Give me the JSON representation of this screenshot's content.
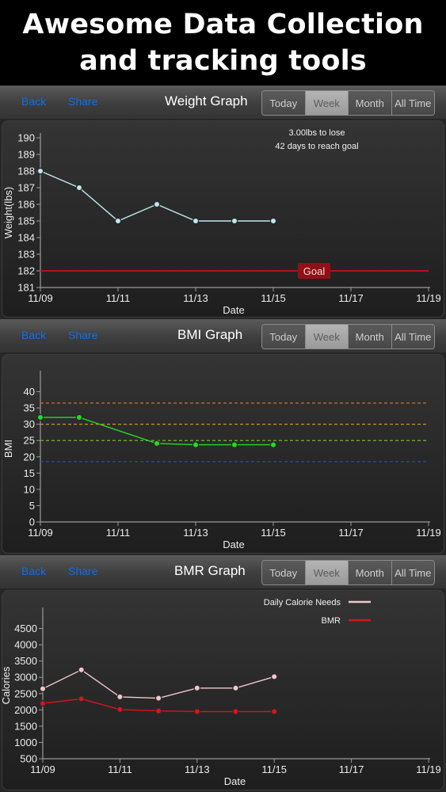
{
  "banner": {
    "line1": "Awesome Data Collection",
    "line2": "and tracking tools"
  },
  "nav": {
    "back": "Back",
    "share": "Share"
  },
  "range_options": [
    "Today",
    "Week",
    "Month",
    "All Time"
  ],
  "selected_range": "Week",
  "colors": {
    "link": "#1f6fd6",
    "weight_line": "#bfe8ee",
    "goal_line": "#b3121b",
    "bmi_line": "#22dd22",
    "calorie_line": "#f2c6cc",
    "bmr_line": "#d8141c",
    "bmi_bands": [
      "#e8731f",
      "#e0a020",
      "#74b82a",
      "#2f4fb5"
    ]
  },
  "graphs": [
    {
      "id": "weight",
      "title": "Weight Graph",
      "show_nav": true,
      "chart_data": {
        "type": "line",
        "xlabel": "Date",
        "ylabel": "Weight(lbs)",
        "x_ticks": [
          "11/09",
          "11/11",
          "11/13",
          "11/15",
          "11/17",
          "11/19"
        ],
        "x_days": [
          9,
          11,
          13,
          15,
          17,
          19
        ],
        "xlim": [
          9,
          19
        ],
        "ylim": [
          181,
          190
        ],
        "y_ticks": [
          181,
          182,
          183,
          184,
          185,
          186,
          187,
          188,
          189,
          190
        ],
        "series": [
          {
            "x": [
              9,
              10,
              11,
              12,
              13,
              14,
              15
            ],
            "values": [
              188,
              187,
              185,
              186,
              185,
              185,
              185
            ]
          }
        ],
        "goal": {
          "value": 182,
          "label": "Goal"
        },
        "annotations": [
          "3.00lbs to lose",
          "42 days to reach goal"
        ]
      }
    },
    {
      "id": "bmi",
      "title": "BMI Graph",
      "show_nav": true,
      "chart_data": {
        "type": "line",
        "xlabel": "Date",
        "ylabel": "BMI",
        "x_ticks": [
          "11/09",
          "11/11",
          "11/13",
          "11/15",
          "11/17",
          "11/19"
        ],
        "x_days": [
          9,
          11,
          13,
          15,
          17,
          19
        ],
        "xlim": [
          9,
          19
        ],
        "ylim": [
          0,
          45
        ],
        "y_ticks": [
          0,
          5,
          10,
          15,
          20,
          25,
          30,
          35,
          40
        ],
        "series": [
          {
            "x": [
              9,
              10,
              12,
              13,
              14,
              15
            ],
            "values": [
              32.1,
              32.1,
              24.1,
              23.7,
              23.7,
              23.7
            ]
          }
        ],
        "reference_lines": [
          36.5,
          30,
          25,
          18.5
        ]
      }
    },
    {
      "id": "bmr",
      "title": "BMR Graph",
      "show_nav": true,
      "chart_data": {
        "type": "line",
        "xlabel": "Date",
        "ylabel": "Calories",
        "x_ticks": [
          "11/09",
          "11/11",
          "11/13",
          "11/15",
          "11/17",
          "11/19"
        ],
        "x_days": [
          9,
          11,
          13,
          15,
          17,
          19
        ],
        "xlim": [
          9,
          19
        ],
        "ylim": [
          500,
          5000
        ],
        "y_ticks": [
          500,
          1000,
          1500,
          2000,
          2500,
          3000,
          3500,
          4000,
          4500
        ],
        "series": [
          {
            "name": "Daily Calorie Needs",
            "x": [
              9,
              10,
              11,
              12,
              13,
              14,
              15
            ],
            "values": [
              2650,
              3230,
              2400,
              2360,
              2670,
              2670,
              3020
            ]
          },
          {
            "name": "BMR",
            "x": [
              9,
              10,
              11,
              12,
              13,
              14,
              15
            ],
            "values": [
              2200,
              2340,
              2010,
              1970,
              1950,
              1950,
              1950
            ]
          }
        ],
        "legend_position": "top-right"
      }
    }
  ]
}
